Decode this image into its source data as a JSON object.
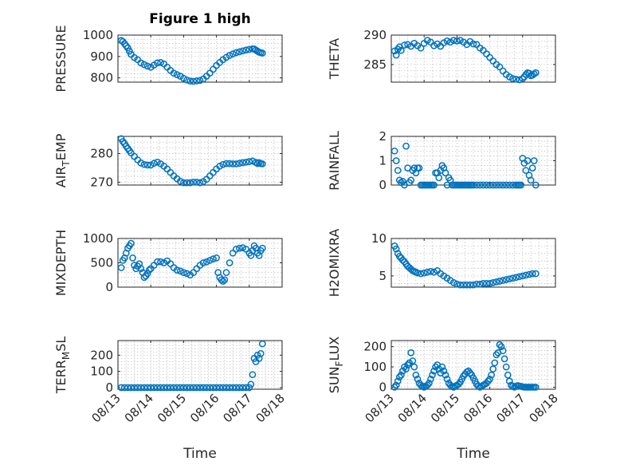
{
  "figure": {
    "title": "Figure 1 high",
    "marker_color": "#0072BD",
    "x_tick_labels": [
      "08/13",
      "08/14",
      "08/15",
      "08/16",
      "08/17",
      "08/18"
    ],
    "x_label": "Time"
  },
  "chart_data": [
    {
      "type": "scatter",
      "name": "pressure",
      "ylabel": "PRESSURE",
      "xlim": [
        0,
        5
      ],
      "ylim": [
        780,
        1000
      ],
      "yticks": [
        800,
        900,
        1000
      ],
      "grid": true,
      "x": [
        0.1,
        0.15,
        0.2,
        0.25,
        0.3,
        0.35,
        0.4,
        0.5,
        0.6,
        0.7,
        0.8,
        0.9,
        1.0,
        1.1,
        1.2,
        1.3,
        1.4,
        1.5,
        1.6,
        1.7,
        1.8,
        1.9,
        2.0,
        2.1,
        2.2,
        2.3,
        2.4,
        2.5,
        2.6,
        2.7,
        2.8,
        2.9,
        3.0,
        3.1,
        3.2,
        3.3,
        3.4,
        3.5,
        3.6,
        3.7,
        3.8,
        3.9,
        4.0,
        4.1,
        4.15,
        4.2,
        4.25,
        4.3,
        4.35,
        4.4
      ],
      "y": [
        975,
        970,
        960,
        950,
        940,
        925,
        910,
        895,
        885,
        870,
        862,
        855,
        850,
        860,
        870,
        872,
        865,
        850,
        835,
        822,
        815,
        808,
        798,
        790,
        785,
        784,
        786,
        788,
        795,
        808,
        822,
        840,
        858,
        872,
        885,
        896,
        905,
        912,
        918,
        922,
        926,
        930,
        933,
        936,
        935,
        930,
        925,
        920,
        918,
        916
      ]
    },
    {
      "type": "scatter",
      "name": "theta",
      "ylabel": "THETA",
      "xlim": [
        0,
        5
      ],
      "ylim": [
        282,
        290
      ],
      "yticks": [
        285,
        290
      ],
      "grid": true,
      "x": [
        0.1,
        0.15,
        0.2,
        0.25,
        0.3,
        0.4,
        0.5,
        0.6,
        0.7,
        0.8,
        0.9,
        1.0,
        1.1,
        1.2,
        1.3,
        1.4,
        1.5,
        1.6,
        1.7,
        1.8,
        1.9,
        2.0,
        2.1,
        2.2,
        2.3,
        2.4,
        2.5,
        2.6,
        2.7,
        2.8,
        2.9,
        3.0,
        3.1,
        3.2,
        3.3,
        3.4,
        3.5,
        3.6,
        3.7,
        3.8,
        3.9,
        4.0,
        4.05,
        4.1,
        4.15,
        4.2,
        4.25,
        4.3,
        4.35,
        4.4
      ],
      "y": [
        287.3,
        286.6,
        287.6,
        288.0,
        287.4,
        288.3,
        288.4,
        288.1,
        288.6,
        288.2,
        287.8,
        288.6,
        289.1,
        288.8,
        288.2,
        288.5,
        288.1,
        288.7,
        289.0,
        288.8,
        289.1,
        289.0,
        289.1,
        288.8,
        288.4,
        288.9,
        288.5,
        288.4,
        287.8,
        287.4,
        286.8,
        286.2,
        285.6,
        285.0,
        284.6,
        283.9,
        283.3,
        282.9,
        282.6,
        282.5,
        282.4,
        282.6,
        282.9,
        283.3,
        283.6,
        283.5,
        283.1,
        283.2,
        283.4,
        283.6
      ]
    },
    {
      "type": "scatter",
      "name": "air_temp",
      "ylabel_parts": [
        "AIR",
        "T",
        "EMP"
      ],
      "xlim": [
        0,
        5
      ],
      "ylim": [
        269,
        286
      ],
      "yticks": [
        270,
        280
      ],
      "grid": true,
      "x": [
        0.1,
        0.15,
        0.2,
        0.25,
        0.3,
        0.35,
        0.4,
        0.5,
        0.6,
        0.7,
        0.8,
        0.9,
        1.0,
        1.1,
        1.2,
        1.3,
        1.4,
        1.5,
        1.6,
        1.7,
        1.8,
        1.9,
        2.0,
        2.1,
        2.2,
        2.3,
        2.4,
        2.5,
        2.6,
        2.7,
        2.8,
        2.9,
        3.0,
        3.1,
        3.2,
        3.3,
        3.4,
        3.5,
        3.6,
        3.7,
        3.8,
        3.9,
        4.0,
        4.1,
        4.2,
        4.25,
        4.3,
        4.35,
        4.4
      ],
      "y": [
        285.2,
        284.2,
        283.5,
        282.6,
        281.8,
        281.0,
        280.2,
        279.0,
        277.8,
        276.7,
        276.2,
        276.0,
        276.0,
        276.6,
        277.0,
        276.4,
        275.6,
        274.6,
        273.4,
        272.2,
        271.2,
        270.3,
        269.8,
        269.8,
        269.8,
        270.0,
        270.0,
        269.8,
        270.2,
        271.0,
        272.2,
        273.4,
        274.6,
        275.6,
        276.2,
        276.5,
        276.5,
        276.4,
        276.4,
        276.6,
        276.8,
        277.0,
        277.2,
        277.4,
        276.9,
        276.5,
        276.8,
        276.5,
        276.4
      ]
    },
    {
      "type": "scatter",
      "name": "rainfall",
      "ylabel": "RAINFALL",
      "xlim": [
        0,
        5
      ],
      "ylim": [
        0,
        2
      ],
      "yticks": [
        0,
        1,
        2
      ],
      "grid": true,
      "x": [
        0.1,
        0.15,
        0.2,
        0.25,
        0.3,
        0.35,
        0.4,
        0.45,
        0.5,
        0.55,
        0.6,
        0.65,
        0.7,
        0.75,
        0.8,
        0.85,
        0.9,
        0.95,
        1.0,
        1.05,
        1.1,
        1.15,
        1.2,
        1.25,
        1.3,
        1.35,
        1.4,
        1.45,
        1.5,
        1.55,
        1.6,
        1.65,
        1.7,
        1.75,
        1.8,
        1.85,
        1.9,
        1.95,
        2.0,
        2.05,
        2.1,
        2.15,
        2.2,
        2.25,
        2.3,
        2.35,
        2.4,
        2.45,
        2.5,
        2.6,
        2.7,
        2.8,
        2.9,
        3.0,
        3.1,
        3.2,
        3.3,
        3.4,
        3.5,
        3.6,
        3.7,
        3.8,
        3.85,
        3.9,
        3.95,
        4.0,
        4.05,
        4.1,
        4.15,
        4.2,
        4.25,
        4.3,
        4.35,
        4.4
      ],
      "y": [
        1.4,
        1.0,
        0.6,
        0.2,
        0.1,
        0.15,
        0.0,
        1.6,
        0.7,
        0.1,
        0.2,
        0.6,
        0.7,
        0.5,
        0.7,
        0.7,
        0.0,
        0.0,
        0.0,
        0.0,
        0.0,
        0.0,
        0.0,
        0.0,
        0.0,
        0.5,
        0.5,
        0.3,
        0.6,
        0.8,
        0.7,
        0.5,
        0.0,
        0.3,
        0.2,
        0.0,
        0.0,
        0.0,
        0.0,
        0.0,
        0.0,
        0.0,
        0.0,
        0.0,
        0.0,
        0.0,
        0.0,
        0.0,
        0.0,
        0.0,
        0.0,
        0.0,
        0.0,
        0.0,
        0.0,
        0.0,
        0.0,
        0.0,
        0.0,
        0.0,
        0.0,
        0.0,
        0.0,
        0.0,
        0.0,
        1.1,
        0.9,
        0.6,
        1.0,
        0.4,
        0.2,
        0.7,
        1.0,
        0.0
      ]
    },
    {
      "type": "scatter",
      "name": "mixdepth",
      "ylabel": "MIXDEPTH",
      "xlim": [
        0,
        5
      ],
      "ylim": [
        0,
        1000
      ],
      "yticks": [
        0,
        500,
        1000
      ],
      "grid": true,
      "x": [
        0.1,
        0.15,
        0.2,
        0.25,
        0.3,
        0.35,
        0.4,
        0.45,
        0.5,
        0.55,
        0.6,
        0.65,
        0.7,
        0.75,
        0.8,
        0.85,
        0.9,
        0.95,
        1.0,
        1.1,
        1.2,
        1.3,
        1.4,
        1.5,
        1.6,
        1.7,
        1.8,
        1.9,
        2.0,
        2.1,
        2.2,
        2.3,
        2.4,
        2.5,
        2.6,
        2.7,
        2.8,
        2.9,
        3.0,
        3.05,
        3.1,
        3.15,
        3.2,
        3.25,
        3.3,
        3.4,
        3.5,
        3.6,
        3.7,
        3.8,
        3.9,
        4.0,
        4.05,
        4.1,
        4.15,
        4.2,
        4.25,
        4.3,
        4.35,
        4.4
      ],
      "y": [
        400,
        550,
        600,
        700,
        800,
        850,
        900,
        600,
        450,
        380,
        430,
        480,
        380,
        300,
        200,
        230,
        280,
        350,
        380,
        450,
        520,
        520,
        500,
        540,
        480,
        400,
        350,
        330,
        300,
        280,
        250,
        300,
        380,
        450,
        500,
        520,
        550,
        580,
        600,
        300,
        200,
        150,
        120,
        150,
        300,
        500,
        700,
        780,
        800,
        810,
        780,
        700,
        650,
        750,
        850,
        800,
        700,
        650,
        750,
        800
      ]
    },
    {
      "type": "scatter",
      "name": "h2omixra",
      "ylabel": "H2OMIXRA",
      "xlim": [
        0,
        5
      ],
      "ylim": [
        3.5,
        10
      ],
      "yticks": [
        5,
        10
      ],
      "grid": true,
      "x": [
        0.1,
        0.15,
        0.2,
        0.25,
        0.3,
        0.35,
        0.4,
        0.45,
        0.5,
        0.55,
        0.6,
        0.65,
        0.7,
        0.75,
        0.8,
        0.9,
        1.0,
        1.1,
        1.2,
        1.3,
        1.4,
        1.5,
        1.6,
        1.7,
        1.8,
        1.9,
        2.0,
        2.1,
        2.2,
        2.3,
        2.4,
        2.5,
        2.6,
        2.7,
        2.8,
        2.9,
        3.0,
        3.1,
        3.2,
        3.3,
        3.4,
        3.5,
        3.6,
        3.7,
        3.8,
        3.9,
        4.0,
        4.1,
        4.2,
        4.3,
        4.4
      ],
      "y": [
        9.0,
        8.6,
        8.0,
        7.6,
        7.4,
        7.1,
        6.9,
        6.6,
        6.3,
        6.1,
        5.9,
        5.7,
        5.6,
        5.5,
        5.4,
        5.3,
        5.4,
        5.5,
        5.6,
        5.5,
        5.7,
        5.3,
        5.0,
        4.7,
        4.4,
        4.1,
        3.9,
        3.8,
        3.8,
        3.8,
        3.8,
        3.8,
        3.9,
        3.9,
        4.0,
        4.0,
        4.0,
        4.1,
        4.2,
        4.3,
        4.4,
        4.5,
        4.6,
        4.7,
        4.8,
        4.9,
        5.0,
        5.1,
        5.2,
        5.3,
        5.3
      ]
    },
    {
      "type": "scatter",
      "name": "terr_msl",
      "ylabel_parts": [
        "TERR",
        "M",
        "SL"
      ],
      "xlim": [
        0,
        5
      ],
      "ylim": [
        -10,
        290
      ],
      "yticks": [
        0,
        100,
        200
      ],
      "grid": true,
      "x": [
        0.1,
        0.2,
        0.3,
        0.4,
        0.5,
        0.6,
        0.7,
        0.8,
        0.9,
        1.0,
        1.1,
        1.2,
        1.3,
        1.4,
        1.5,
        1.6,
        1.7,
        1.8,
        1.9,
        2.0,
        2.1,
        2.2,
        2.3,
        2.4,
        2.5,
        2.6,
        2.7,
        2.8,
        2.9,
        3.0,
        3.1,
        3.2,
        3.3,
        3.4,
        3.5,
        3.6,
        3.7,
        3.8,
        3.9,
        4.0,
        4.05,
        4.1,
        4.15,
        4.2,
        4.25,
        4.3,
        4.35,
        4.4
      ],
      "y": [
        0,
        0,
        0,
        0,
        0,
        0,
        0,
        0,
        0,
        0,
        0,
        0,
        0,
        0,
        0,
        0,
        0,
        0,
        0,
        0,
        0,
        0,
        0,
        0,
        0,
        0,
        0,
        0,
        0,
        0,
        0,
        0,
        0,
        0,
        0,
        0,
        0,
        0,
        0,
        0,
        20,
        80,
        180,
        160,
        200,
        180,
        210,
        270
      ]
    },
    {
      "type": "scatter",
      "name": "sun_flux",
      "ylabel_parts": [
        "SUN",
        "F",
        "LUX"
      ],
      "xlim": [
        0,
        5
      ],
      "ylim": [
        -10,
        230
      ],
      "yticks": [
        0,
        100,
        200
      ],
      "grid": true,
      "x": [
        0.1,
        0.15,
        0.2,
        0.25,
        0.3,
        0.35,
        0.4,
        0.45,
        0.5,
        0.55,
        0.6,
        0.65,
        0.7,
        0.75,
        0.8,
        0.85,
        0.9,
        0.95,
        1.0,
        1.05,
        1.1,
        1.15,
        1.2,
        1.25,
        1.3,
        1.35,
        1.4,
        1.45,
        1.5,
        1.55,
        1.6,
        1.65,
        1.7,
        1.75,
        1.8,
        1.85,
        1.9,
        1.95,
        2.0,
        2.05,
        2.1,
        2.15,
        2.2,
        2.25,
        2.3,
        2.35,
        2.4,
        2.45,
        2.5,
        2.55,
        2.6,
        2.65,
        2.7,
        2.75,
        2.8,
        2.85,
        2.9,
        2.95,
        3.0,
        3.05,
        3.1,
        3.15,
        3.2,
        3.25,
        3.3,
        3.35,
        3.4,
        3.45,
        3.5,
        3.55,
        3.6,
        3.65,
        3.7,
        3.75,
        3.8,
        3.85,
        3.9,
        3.95,
        4.0,
        4.05,
        4.1,
        4.15,
        4.2,
        4.25,
        4.3,
        4.35,
        4.4
      ],
      "y": [
        0,
        10,
        30,
        50,
        60,
        80,
        100,
        90,
        110,
        120,
        170,
        130,
        100,
        60,
        40,
        20,
        10,
        5,
        0,
        5,
        10,
        20,
        40,
        60,
        80,
        100,
        110,
        90,
        70,
        100,
        80,
        60,
        40,
        20,
        10,
        5,
        0,
        5,
        10,
        15,
        25,
        40,
        55,
        65,
        75,
        80,
        70,
        60,
        45,
        30,
        15,
        5,
        0,
        5,
        10,
        15,
        20,
        30,
        40,
        60,
        90,
        120,
        160,
        170,
        210,
        200,
        180,
        140,
        100,
        60,
        30,
        10,
        5,
        0,
        5,
        8,
        6,
        4,
        2,
        0,
        0,
        0,
        0,
        0,
        0,
        0,
        0
      ]
    }
  ]
}
